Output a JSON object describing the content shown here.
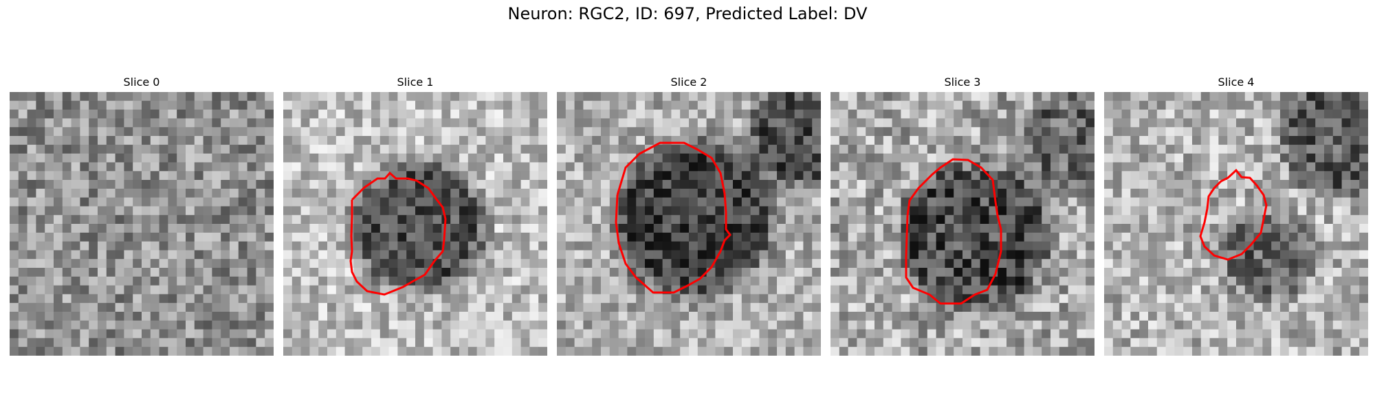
{
  "figure": {
    "title": "Neuron: RGC2, ID: 697, Predicted Label: DV"
  },
  "style": {
    "contour_color": "#ff0000"
  },
  "slices": [
    {
      "title": "Slice 0",
      "has_contour": false,
      "contrast": "low, uniform noisy gray",
      "dark_region": "none"
    },
    {
      "title": "Slice 1",
      "has_contour": true,
      "contrast": "dark blob in center, light surround",
      "dark_region": "center"
    },
    {
      "title": "Slice 2",
      "has_contour": true,
      "contrast": "large dark blob in center, dark corner top-right",
      "dark_region": "center-large"
    },
    {
      "title": "Slice 3",
      "has_contour": true,
      "contrast": "dark blob center, mottled surround",
      "dark_region": "center"
    },
    {
      "title": "Slice 4",
      "has_contour": true,
      "contrast": "small faint dark blob, dark top-right edge",
      "dark_region": "center-small"
    }
  ]
}
